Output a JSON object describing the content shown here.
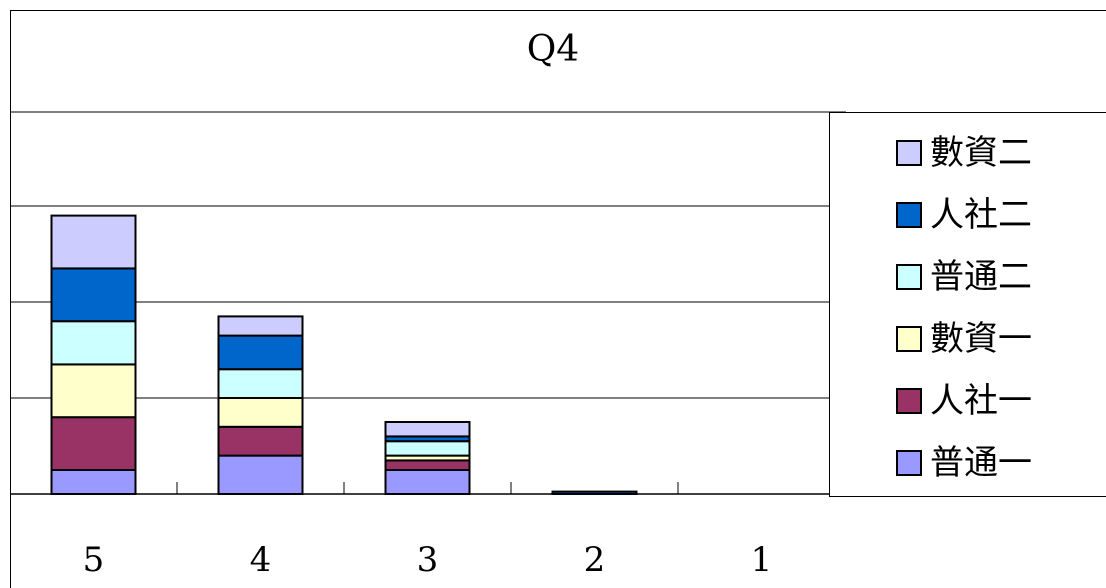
{
  "chart_data": {
    "type": "bar",
    "stacked": true,
    "title": "Q4",
    "categories": [
      "5",
      "4",
      "3",
      "2",
      "1"
    ],
    "series": [
      {
        "name": "普通一",
        "color": "#9999ff",
        "values": [
          5,
          8,
          5,
          0,
          0
        ]
      },
      {
        "name": "人社一",
        "color": "#993366",
        "values": [
          11,
          6,
          2,
          0,
          0
        ]
      },
      {
        "name": "數資一",
        "color": "#ffffcc",
        "values": [
          11,
          6,
          1,
          0,
          0
        ]
      },
      {
        "name": "普通二",
        "color": "#ccffff",
        "values": [
          9,
          6,
          3,
          0,
          0
        ]
      },
      {
        "name": "人社二",
        "color": "#0066cc",
        "values": [
          11,
          7,
          1,
          0.5,
          0
        ]
      },
      {
        "name": "數資二",
        "color": "#ccccff",
        "values": [
          11,
          4,
          3,
          0,
          0
        ]
      }
    ],
    "ylim": [
      0,
      60
    ],
    "y_gridline_step": 20,
    "grid": true,
    "legend_position": "right"
  }
}
